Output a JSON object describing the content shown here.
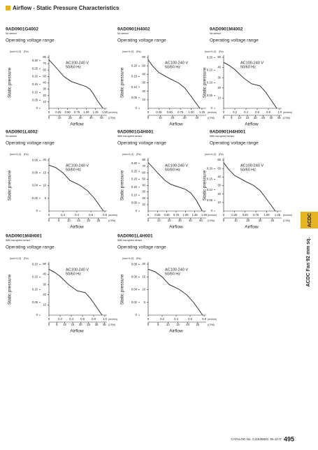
{
  "title": "Airflow - Static Pressure Characteristics",
  "side_tab": "ACDC",
  "side_label": "ACDC Fan 92 mm sq.",
  "footer": "CATALOG No. C1162B001 '25.10 IT",
  "page_number": "495",
  "chart_data": [
    {
      "type": "line",
      "title": "9AD0901G4002",
      "subtitle": "No sensor",
      "caption": "Operating voltage range",
      "ylabel": "Static pressure",
      "xlabel": "Airflow",
      "y_unit": "(Pa)",
      "y2_unit": "(inch H₂O)",
      "x_unit": "(m³/min)",
      "x2_unit": "(CFM)",
      "annotation": [
        "AC100-240 V",
        "50/60 Hz"
      ],
      "color": "#222222",
      "x": [
        0,
        0.1,
        0.25,
        0.4,
        0.6,
        0.8,
        1.0,
        1.1,
        1.2,
        1.3,
        1.45
      ],
      "values": [
        76,
        70,
        60,
        50,
        42,
        38,
        34,
        30,
        22,
        12,
        0
      ],
      "xlim": [
        0,
        1.5
      ],
      "xticks": [
        0,
        0.25,
        {
          "value": 0.5,
          "label": "0.50"
        },
        0.75,
        {
          "value": 1,
          "label": "1.00"
        },
        1.25,
        {
          "value": 1.5,
          "label": "1.50"
        }
      ],
      "x2lim": [
        0,
        52.97
      ],
      "x2ticks": [
        0,
        10,
        20,
        30,
        40,
        50
      ],
      "ylim": [
        0,
        80
      ],
      "yticks": [
        10,
        20,
        30,
        40,
        50,
        60,
        70,
        80
      ],
      "y2lim": [
        0,
        0.3212
      ],
      "y2ticks": [
        0,
        0.05,
        {
          "value": 0.1,
          "label": "0.10"
        },
        0.15,
        {
          "value": 0.2,
          "label": "0.20"
        },
        0.25,
        {
          "value": 0.3,
          "label": "0.30"
        }
      ]
    },
    {
      "type": "line",
      "title": "9AD0901H4002",
      "subtitle": "No sensor",
      "caption": "Operating voltage range",
      "ylabel": "Static pressure",
      "xlabel": "Airflow",
      "y_unit": "(Pa)",
      "y2_unit": "(inch H₂O)",
      "x_unit": "(m³/min)",
      "x2_unit": "(CFM)",
      "annotation": [
        "AC100-240 V",
        "50/60 Hz"
      ],
      "color": "#222222",
      "x": [
        0,
        0.1,
        0.25,
        0.5,
        0.7,
        0.85,
        1.0,
        1.1,
        1.2
      ],
      "values": [
        57,
        50,
        42,
        35,
        30,
        24,
        14,
        7,
        0
      ],
      "xlim": [
        0,
        1.3
      ],
      "xticks": [
        0,
        0.25,
        {
          "value": 0.5,
          "label": "0.50"
        },
        0.75,
        {
          "value": 1,
          "label": "1.00"
        },
        1.25
      ],
      "x2lim": [
        0,
        45.91
      ],
      "x2ticks": [
        0,
        10,
        20,
        30,
        40
      ],
      "ylim": [
        0,
        60
      ],
      "yticks": [
        10,
        20,
        30,
        40,
        50,
        60
      ],
      "y2lim": [
        0,
        0.2409
      ],
      "y2ticks": [
        0,
        0.05,
        {
          "value": 0.1,
          "label": "0.10"
        },
        0.15,
        {
          "value": 0.2,
          "label": "0.20"
        }
      ]
    },
    {
      "type": "line",
      "title": "9AD0901M4002",
      "subtitle": "No sensor",
      "caption": "Operating voltage range",
      "ylabel": "Static pressure",
      "xlabel": "Airflow",
      "y_unit": "(Pa)",
      "y2_unit": "(inch H₂O)",
      "x_unit": "(m³/min)",
      "x2_unit": "(CFM)",
      "annotation": [
        "AC100-240 V",
        "50/60 Hz"
      ],
      "color": "#222222",
      "x": [
        0,
        0.1,
        0.2,
        0.35,
        0.5,
        0.65,
        0.75,
        0.85,
        0.95
      ],
      "values": [
        45,
        42,
        38,
        30,
        24,
        22,
        16,
        8,
        0
      ],
      "xlim": [
        0,
        1.0
      ],
      "xticks": [
        0,
        0.2,
        0.4,
        0.6,
        0.8,
        {
          "value": 1,
          "label": "1.0"
        }
      ],
      "x2lim": [
        0,
        35.31
      ],
      "x2ticks": [
        0,
        5,
        10,
        15,
        20,
        25,
        30,
        35
      ],
      "ylim": [
        0,
        50
      ],
      "yticks": [
        10,
        20,
        30,
        40,
        50
      ],
      "y2lim": [
        0,
        0.2007
      ],
      "y2ticks": [
        0,
        0.05,
        {
          "value": 0.1,
          "label": "0.10"
        },
        0.15,
        {
          "value": 0.2,
          "label": "0.20"
        }
      ]
    },
    {
      "type": "line",
      "title": "9AD0901L4002",
      "subtitle": "No sensor",
      "caption": "Operating voltage range",
      "ylabel": "Static pressure",
      "xlabel": "Airflow",
      "y_unit": "(Pa)",
      "y2_unit": "(inch H₂O)",
      "x_unit": "(m³/min)",
      "x2_unit": "(CFM)",
      "annotation": [
        "AC100-240 V",
        "50/60 Hz"
      ],
      "color": "#222222",
      "x": [
        0,
        0.1,
        0.2,
        0.3,
        0.45,
        0.55,
        0.65,
        0.78
      ],
      "values": [
        18,
        17,
        15,
        12,
        10,
        8,
        5,
        0
      ],
      "xlim": [
        0,
        0.8
      ],
      "xticks": [
        0,
        0.2,
        0.4,
        0.6,
        0.8
      ],
      "x2lim": [
        0,
        28.25
      ],
      "x2ticks": [
        0,
        5,
        10,
        15,
        20,
        25
      ],
      "ylim": [
        0,
        20
      ],
      "yticks": [
        5,
        10,
        15,
        20
      ],
      "y2lim": [
        0,
        0.0803
      ],
      "y2ticks": [
        0,
        0.02,
        0.04,
        0.06,
        0.08
      ]
    },
    {
      "type": "line",
      "title": "9AD0901G4H001",
      "subtitle": "With low-speed sensor",
      "caption": "Operating voltage range",
      "ylabel": "Static pressure",
      "xlabel": "Airflow",
      "y_unit": "(Pa)",
      "y2_unit": "(inch H₂O)",
      "x_unit": "(m³/min)",
      "x2_unit": "(CFM)",
      "annotation": [
        "AC100-240 V",
        "50/60 Hz"
      ],
      "color": "#222222",
      "x": [
        0,
        0.1,
        0.25,
        0.45,
        0.6,
        0.8,
        1.0,
        1.15,
        1.3,
        1.45
      ],
      "values": [
        76,
        70,
        60,
        48,
        42,
        38,
        34,
        28,
        16,
        0
      ],
      "xlim": [
        0,
        1.5
      ],
      "xticks": [
        0,
        0.25,
        {
          "value": 0.5,
          "label": "0.50"
        },
        0.75,
        {
          "value": 1,
          "label": "1.00"
        },
        1.25,
        {
          "value": 1.5,
          "label": "1.50"
        }
      ],
      "x2lim": [
        0,
        52.97
      ],
      "x2ticks": [
        0,
        10,
        20,
        30,
        40,
        50
      ],
      "ylim": [
        0,
        80
      ],
      "yticks": [
        10,
        20,
        30,
        40,
        50,
        60,
        70,
        80
      ],
      "y2lim": [
        0,
        0.3212
      ],
      "y2ticks": [
        0,
        0.05,
        {
          "value": 0.1,
          "label": "0.10"
        },
        0.15,
        {
          "value": 0.2,
          "label": "0.20"
        },
        0.25,
        {
          "value": 0.3,
          "label": "0.30"
        }
      ]
    },
    {
      "type": "line",
      "title": "9AD0901H4H001",
      "subtitle": "With low-speed sensor",
      "caption": "Operating voltage range",
      "ylabel": "Static pressure",
      "xlabel": "Airflow",
      "y_unit": "(Pa)",
      "y2_unit": "(inch H₂O)",
      "x_unit": "(m³/min)",
      "x2_unit": "(CFM)",
      "annotation": [
        "AC100-240 V",
        "50/60 Hz"
      ],
      "color": "#222222",
      "x": [
        0,
        0.1,
        0.25,
        0.5,
        0.7,
        0.85,
        1.0,
        1.1,
        1.2
      ],
      "values": [
        57,
        50,
        42,
        35,
        30,
        24,
        14,
        7,
        0
      ],
      "xlim": [
        0,
        1.3
      ],
      "xticks": [
        0,
        0.25,
        {
          "value": 0.5,
          "label": "0.50"
        },
        0.75,
        {
          "value": 1,
          "label": "1.00"
        },
        1.25
      ],
      "x2lim": [
        0,
        45.91
      ],
      "x2ticks": [
        0,
        10,
        20,
        30,
        40
      ],
      "ylim": [
        0,
        60
      ],
      "yticks": [
        10,
        20,
        30,
        40,
        50,
        60
      ],
      "y2lim": [
        0,
        0.2409
      ],
      "y2ticks": [
        0,
        0.05,
        {
          "value": 0.1,
          "label": "0.10"
        },
        0.15,
        {
          "value": 0.2,
          "label": "0.20"
        }
      ]
    },
    {
      "type": "line",
      "title": "9AD0901M4H001",
      "subtitle": "With low-speed sensor",
      "caption": "Operating voltage range",
      "ylabel": "Static pressure",
      "xlabel": "Airflow",
      "y_unit": "(Pa)",
      "y2_unit": "(inch H₂O)",
      "x_unit": "(m³/min)",
      "x2_unit": "(CFM)",
      "annotation": [
        "AC100-240 V",
        "50/60 Hz"
      ],
      "color": "#222222",
      "x": [
        0,
        0.1,
        0.2,
        0.35,
        0.5,
        0.65,
        0.75,
        0.85,
        0.95
      ],
      "values": [
        45,
        42,
        38,
        30,
        24,
        22,
        16,
        8,
        0
      ],
      "xlim": [
        0,
        1.0
      ],
      "xticks": [
        0,
        0.2,
        0.4,
        0.6,
        0.8,
        {
          "value": 1,
          "label": "1.0"
        }
      ],
      "x2lim": [
        0,
        35.31
      ],
      "x2ticks": [
        0,
        5,
        10,
        15,
        20,
        25,
        30,
        35
      ],
      "ylim": [
        0,
        50
      ],
      "yticks": [
        10,
        20,
        30,
        40,
        50
      ],
      "y2lim": [
        0,
        0.2007
      ],
      "y2ticks": [
        0,
        0.05,
        {
          "value": 0.1,
          "label": "0.10"
        },
        0.15,
        {
          "value": 0.2,
          "label": "0.20"
        }
      ]
    },
    {
      "type": "line",
      "title": "9AD0901L4H001",
      "subtitle": "With low-speed sensor",
      "caption": "Operating voltage range",
      "ylabel": "Static pressure",
      "xlabel": "Airflow",
      "y_unit": "(Pa)",
      "y2_unit": "(inch H₂O)",
      "x_unit": "(m³/min)",
      "x2_unit": "(CFM)",
      "annotation": [
        "AC100-240 V",
        "50/60 Hz"
      ],
      "color": "#222222",
      "x": [
        0,
        0.1,
        0.2,
        0.3,
        0.45,
        0.55,
        0.65,
        0.78
      ],
      "values": [
        18,
        17,
        15,
        12,
        10,
        8,
        5,
        0
      ],
      "xlim": [
        0,
        0.8
      ],
      "xticks": [
        0,
        0.2,
        0.4,
        0.6,
        0.8
      ],
      "x2lim": [
        0,
        28.25
      ],
      "x2ticks": [
        0,
        5,
        10,
        15,
        20,
        25
      ],
      "ylim": [
        0,
        20
      ],
      "yticks": [
        5,
        10,
        15,
        20
      ],
      "y2lim": [
        0,
        0.0803
      ],
      "y2ticks": [
        0,
        0.02,
        0.04,
        0.06,
        0.08
      ]
    }
  ]
}
